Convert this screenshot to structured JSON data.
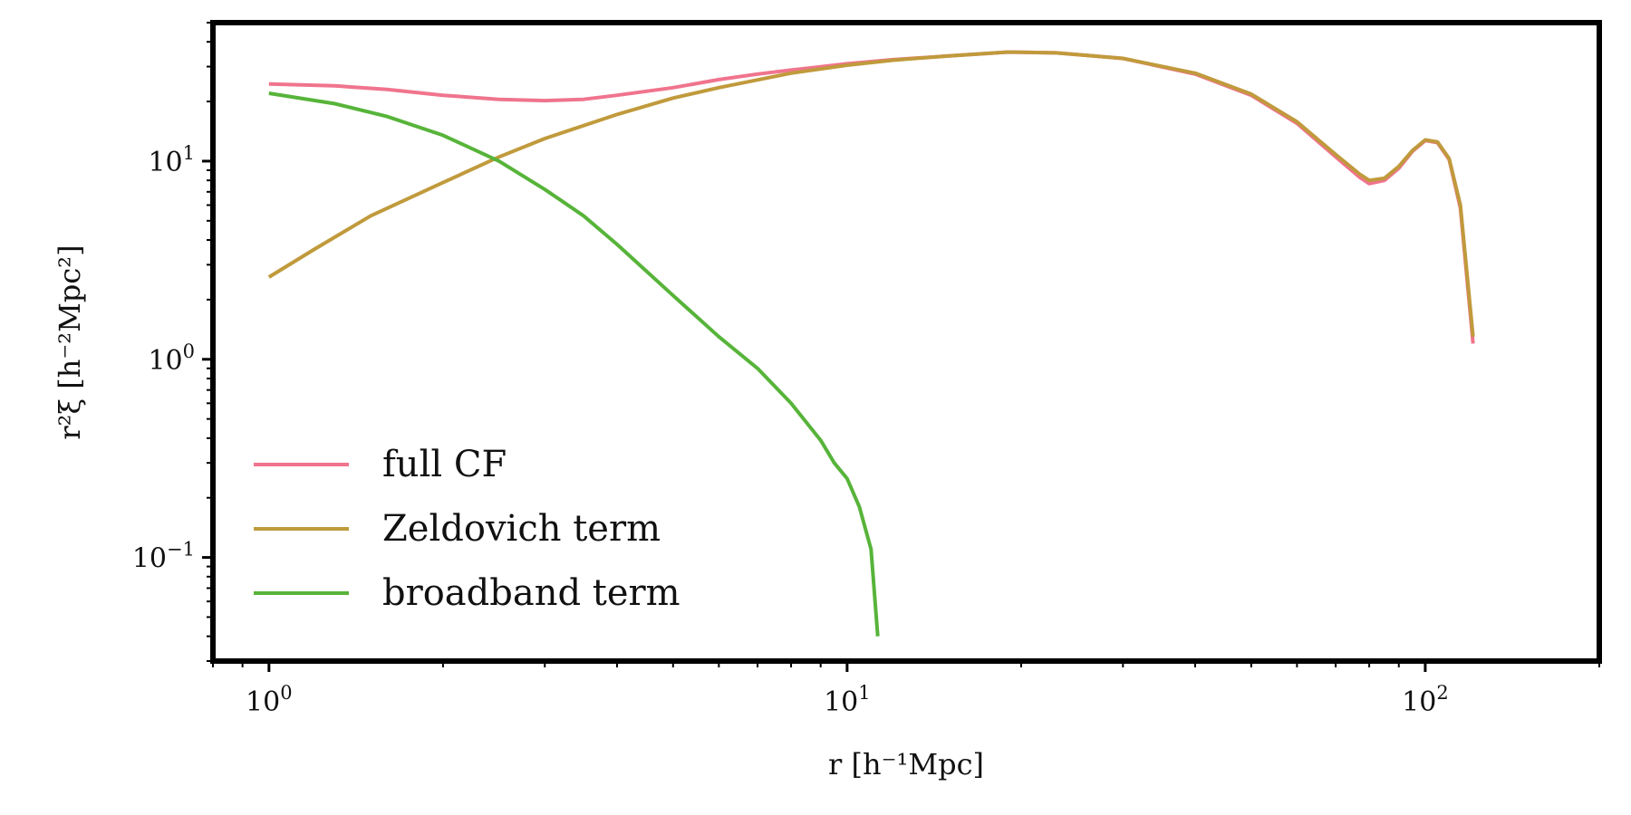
{
  "chart_data": {
    "type": "line",
    "xscale": "log",
    "yscale": "log",
    "xlim": [
      0.8,
      200
    ],
    "ylim": [
      0.03,
      50
    ],
    "xlabel": "r [h⁻¹Mpc]",
    "ylabel": "r²ξ [h⁻²Mpc²]",
    "xticks": [
      {
        "value": 1,
        "base": "10",
        "exp": "0"
      },
      {
        "value": 10,
        "base": "10",
        "exp": "1"
      },
      {
        "value": 100,
        "base": "10",
        "exp": "2"
      }
    ],
    "yticks": [
      {
        "value": 0.1,
        "base": "10",
        "exp": "−1"
      },
      {
        "value": 1,
        "base": "10",
        "exp": "0"
      },
      {
        "value": 10,
        "base": "10",
        "exp": "1"
      }
    ],
    "legend_position": "lower-left",
    "grid": false,
    "series": [
      {
        "name": "full CF",
        "color": "#f0748d",
        "points": [
          [
            1.0,
            24.5
          ],
          [
            1.3,
            24.0
          ],
          [
            1.6,
            23.0
          ],
          [
            2.0,
            21.5
          ],
          [
            2.5,
            20.5
          ],
          [
            3.0,
            20.2
          ],
          [
            3.5,
            20.5
          ],
          [
            4.0,
            21.5
          ],
          [
            5.0,
            23.5
          ],
          [
            6.0,
            25.8
          ],
          [
            7.0,
            27.5
          ],
          [
            8.0,
            28.8
          ],
          [
            10.0,
            31.0
          ],
          [
            12.0,
            32.5
          ],
          [
            15.0,
            34.0
          ],
          [
            19.0,
            35.5
          ],
          [
            23.0,
            35.2
          ],
          [
            30.0,
            33.0
          ],
          [
            40.0,
            27.5
          ],
          [
            50.0,
            21.5
          ],
          [
            60.0,
            15.5
          ],
          [
            70.0,
            10.5
          ],
          [
            77.0,
            8.3
          ],
          [
            80.0,
            7.7
          ],
          [
            85.0,
            8.0
          ],
          [
            90.0,
            9.2
          ],
          [
            95.0,
            11.2
          ],
          [
            100.0,
            12.7
          ],
          [
            105.0,
            12.4
          ],
          [
            110.0,
            10.2
          ],
          [
            115.0,
            5.8
          ],
          [
            121.0,
            1.2
          ]
        ]
      },
      {
        "name": "Zeldovich term",
        "color": "#c09a3c",
        "points": [
          [
            1.0,
            2.6
          ],
          [
            1.2,
            3.6
          ],
          [
            1.5,
            5.3
          ],
          [
            2.0,
            7.8
          ],
          [
            2.5,
            10.5
          ],
          [
            3.0,
            13.0
          ],
          [
            4.0,
            17.2
          ],
          [
            5.0,
            20.8
          ],
          [
            6.0,
            23.5
          ],
          [
            8.0,
            27.8
          ],
          [
            10.0,
            30.5
          ],
          [
            12.0,
            32.3
          ],
          [
            15.0,
            34.0
          ],
          [
            19.0,
            35.5
          ],
          [
            23.0,
            35.2
          ],
          [
            30.0,
            33.0
          ],
          [
            40.0,
            27.8
          ],
          [
            50.0,
            21.8
          ],
          [
            60.0,
            15.8
          ],
          [
            70.0,
            10.8
          ],
          [
            77.0,
            8.6
          ],
          [
            80.0,
            8.0
          ],
          [
            85.0,
            8.2
          ],
          [
            90.0,
            9.4
          ],
          [
            95.0,
            11.3
          ],
          [
            100.0,
            12.8
          ],
          [
            105.0,
            12.5
          ],
          [
            110.0,
            10.3
          ],
          [
            115.0,
            6.0
          ],
          [
            121.0,
            1.3
          ]
        ]
      },
      {
        "name": "broadband term",
        "color": "#57b43a",
        "points": [
          [
            1.0,
            22.0
          ],
          [
            1.3,
            19.5
          ],
          [
            1.6,
            16.8
          ],
          [
            2.0,
            13.5
          ],
          [
            2.5,
            10.0
          ],
          [
            3.0,
            7.2
          ],
          [
            3.5,
            5.3
          ],
          [
            4.0,
            3.8
          ],
          [
            5.0,
            2.1
          ],
          [
            6.0,
            1.3
          ],
          [
            7.0,
            0.9
          ],
          [
            8.0,
            0.6
          ],
          [
            9.0,
            0.39
          ],
          [
            9.5,
            0.3
          ],
          [
            10.0,
            0.25
          ],
          [
            10.5,
            0.18
          ],
          [
            11.0,
            0.11
          ],
          [
            11.3,
            0.04
          ]
        ]
      }
    ]
  }
}
